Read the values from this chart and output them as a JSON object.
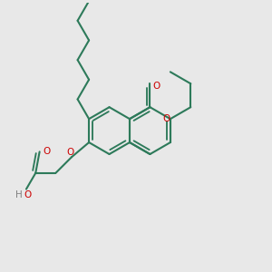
{
  "background_color": "#e8e8e8",
  "bond_color": "#2d7a5a",
  "oxygen_color": "#cc0000",
  "hydrogen_color": "#808080",
  "line_width": 1.5,
  "figsize": [
    3.0,
    3.0
  ],
  "dpi": 100,
  "xlim": [
    0,
    10
  ],
  "ylim": [
    0,
    10
  ]
}
